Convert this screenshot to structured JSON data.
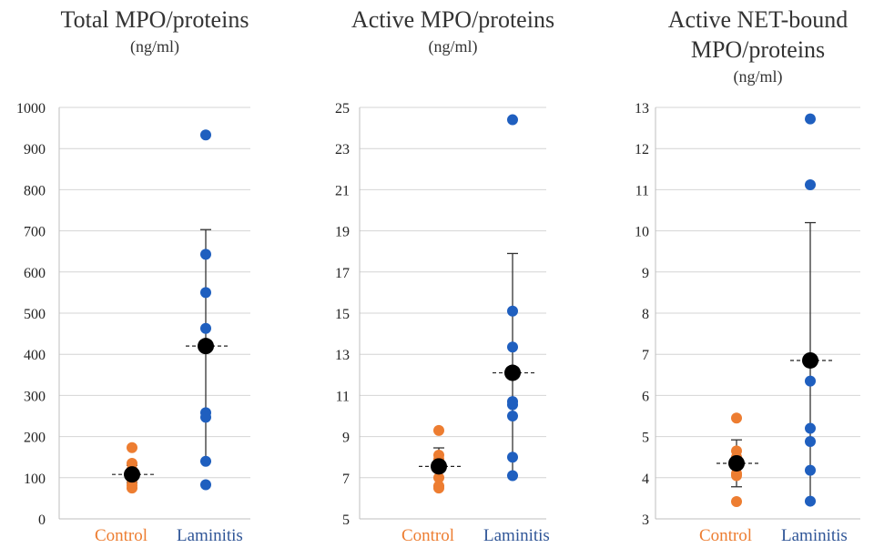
{
  "chart_data": [
    {
      "type": "scatter",
      "title": "Total MPO/proteins",
      "title_lines": [
        "Total MPO/proteins"
      ],
      "subtitle": "(ng/ml)",
      "categories": [
        "Control",
        "Laminitis"
      ],
      "category_colors": [
        "#ED7D31",
        "#2F5597"
      ],
      "ylim": [
        0,
        1000
      ],
      "yticks": [
        0,
        100,
        200,
        300,
        400,
        500,
        600,
        700,
        800,
        900,
        1000
      ],
      "grid": true,
      "series": [
        {
          "category": "Control",
          "color": "#ED7D31",
          "values": [
            173,
            135,
            120,
            108,
            95,
            82,
            75
          ],
          "mean": 108,
          "err_low": 88,
          "err_high": 130
        },
        {
          "category": "Laminitis",
          "color": "#1F5FBF",
          "values": [
            933,
            643,
            550,
            463,
            258,
            247,
            140,
            83
          ],
          "mean": 420,
          "err_low": 140,
          "err_high": 703
        }
      ]
    },
    {
      "type": "scatter",
      "title": "Active MPO/proteins",
      "title_lines": [
        "Active MPO/proteins"
      ],
      "subtitle": "(ng/ml)",
      "categories": [
        "Control",
        "Laminitis"
      ],
      "category_colors": [
        "#ED7D31",
        "#2F5597"
      ],
      "ylim": [
        5,
        25
      ],
      "yticks": [
        5,
        7,
        9,
        11,
        13,
        15,
        17,
        19,
        21,
        23,
        25
      ],
      "grid": true,
      "series": [
        {
          "category": "Control",
          "color": "#ED7D31",
          "values": [
            9.3,
            8.1,
            7.9,
            7.5,
            7.0,
            6.6,
            6.5
          ],
          "mean": 7.55,
          "err_low": 6.6,
          "err_high": 8.45
        },
        {
          "category": "Laminitis",
          "color": "#1F5FBF",
          "values": [
            24.4,
            15.1,
            13.35,
            10.7,
            10.55,
            10.0,
            8.0,
            7.1
          ],
          "mean": 12.1,
          "err_low": 7.1,
          "err_high": 17.9
        }
      ]
    },
    {
      "type": "scatter",
      "title": "Active NET-bound MPO/proteins",
      "title_lines": [
        "Active NET-bound",
        "MPO/proteins"
      ],
      "subtitle": "(ng/ml)",
      "categories": [
        "Control",
        "Laminitis"
      ],
      "category_colors": [
        "#ED7D31",
        "#2F5597"
      ],
      "ylim": [
        3,
        13
      ],
      "yticks": [
        3,
        4,
        5,
        6,
        7,
        8,
        9,
        10,
        11,
        12,
        13
      ],
      "grid": true,
      "series": [
        {
          "category": "Control",
          "color": "#ED7D31",
          "values": [
            5.45,
            4.65,
            4.5,
            4.1,
            4.05,
            3.42
          ],
          "mean": 4.35,
          "err_low": 3.78,
          "err_high": 4.92
        },
        {
          "category": "Laminitis",
          "color": "#1F5FBF",
          "values": [
            12.72,
            11.12,
            6.35,
            5.2,
            4.88,
            4.18,
            3.43
          ],
          "mean": 6.85,
          "err_low": 3.43,
          "err_high": 10.2
        }
      ]
    }
  ]
}
